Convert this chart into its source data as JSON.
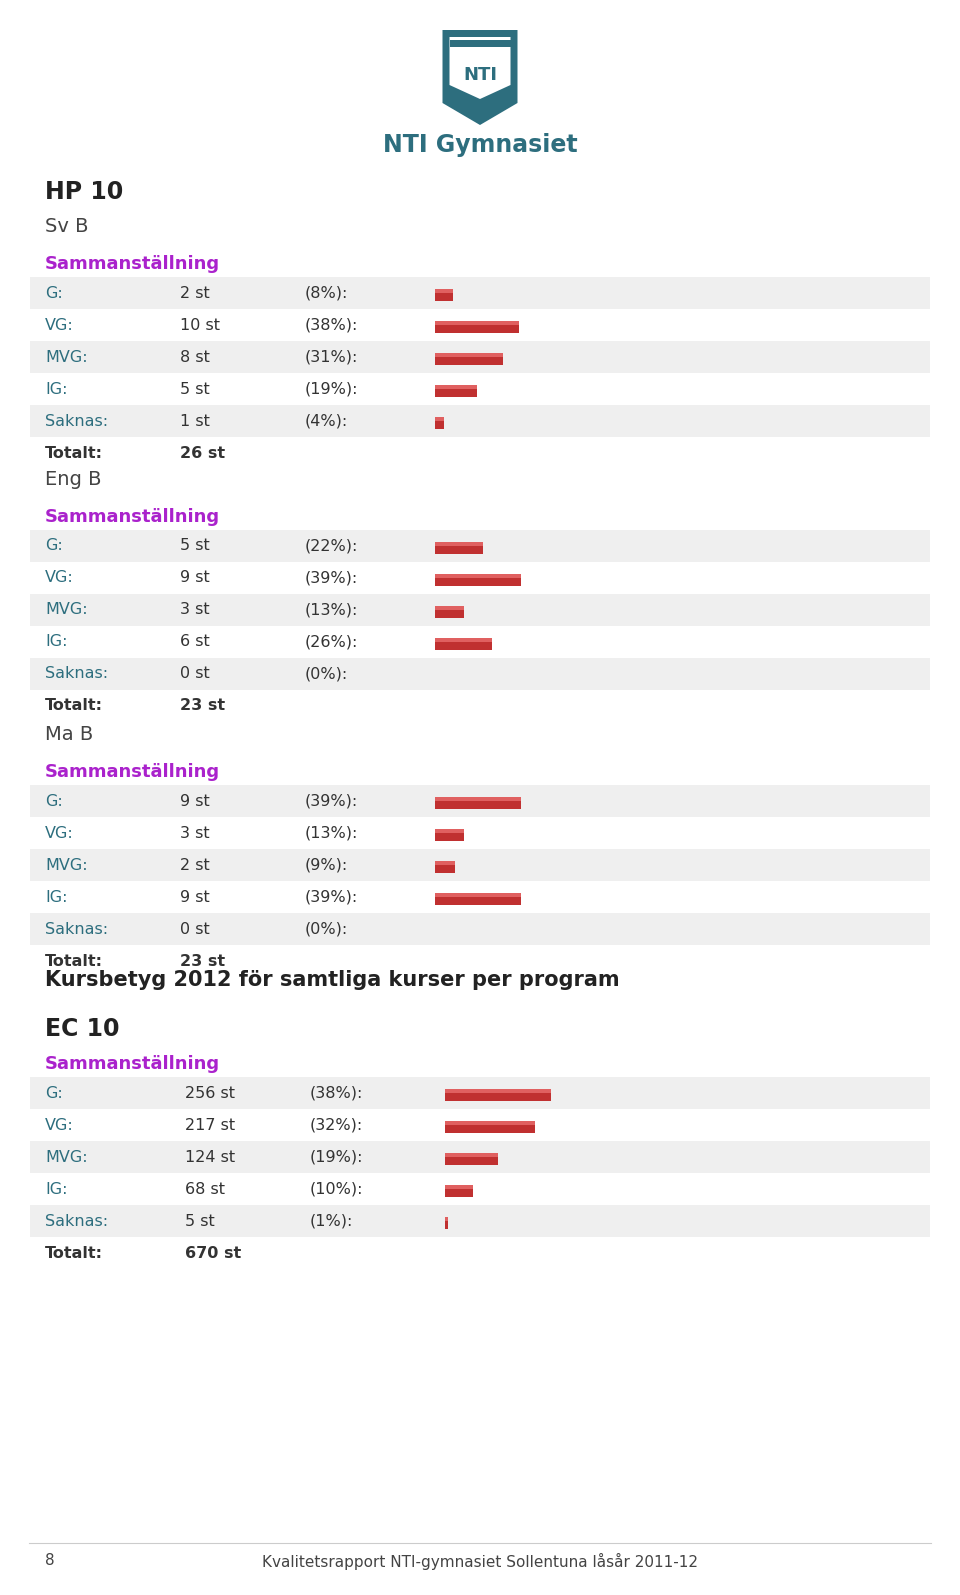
{
  "logo_text": "NTI Gymnasiet",
  "sections": [
    {
      "program": "HP 10",
      "subject": "Sv B",
      "rows": [
        {
          "name": "G:",
          "count": 2,
          "pct_num": 8
        },
        {
          "name": "VG:",
          "count": 10,
          "pct_num": 38
        },
        {
          "name": "MVG:",
          "count": 8,
          "pct_num": 31
        },
        {
          "name": "IG:",
          "count": 5,
          "pct_num": 19
        },
        {
          "name": "Saknas:",
          "count": 1,
          "pct_num": 4
        },
        {
          "name": "Totalt:",
          "count": 26,
          "pct_num": null
        }
      ]
    },
    {
      "program": "Eng B",
      "subject": null,
      "rows": [
        {
          "name": "G:",
          "count": 5,
          "pct_num": 22
        },
        {
          "name": "VG:",
          "count": 9,
          "pct_num": 39
        },
        {
          "name": "MVG:",
          "count": 3,
          "pct_num": 13
        },
        {
          "name": "IG:",
          "count": 6,
          "pct_num": 26
        },
        {
          "name": "Saknas:",
          "count": 0,
          "pct_num": 0
        },
        {
          "name": "Totalt:",
          "count": 23,
          "pct_num": null
        }
      ]
    },
    {
      "program": "Ma B",
      "subject": null,
      "rows": [
        {
          "name": "G:",
          "count": 9,
          "pct_num": 39
        },
        {
          "name": "VG:",
          "count": 3,
          "pct_num": 13
        },
        {
          "name": "MVG:",
          "count": 2,
          "pct_num": 9
        },
        {
          "name": "IG:",
          "count": 9,
          "pct_num": 39
        },
        {
          "name": "Saknas:",
          "count": 0,
          "pct_num": 0
        },
        {
          "name": "Totalt:",
          "count": 23,
          "pct_num": null
        }
      ]
    }
  ],
  "summary_title": "Kursbetyg 2012 för samtliga kurser per program",
  "summary_program": "EC 10",
  "summary_rows": [
    {
      "name": "G:",
      "count": 256,
      "pct_num": 38
    },
    {
      "name": "VG:",
      "count": 217,
      "pct_num": 32
    },
    {
      "name": "MVG:",
      "count": 124,
      "pct_num": 19
    },
    {
      "name": "IG:",
      "count": 68,
      "pct_num": 10
    },
    {
      "name": "Saknas:",
      "count": 5,
      "pct_num": 1
    },
    {
      "name": "Totalt:",
      "count": 670,
      "pct_num": null
    }
  ],
  "bg_color": "#ffffff",
  "table_bg_even": "#efefef",
  "table_bg_odd": "#ffffff",
  "bar_color_light": "#e06060",
  "bar_color_dark": "#c03030",
  "program_color": "#222222",
  "subject_color": "#444444",
  "sammans_color": "#aa22cc",
  "label_color": "#2d6e7e",
  "totalt_color": "#333333",
  "footer_text": "Kvalitetsrapport NTI-gymnasiet Sollentuna låsår 2011-12",
  "footer_page": "8",
  "shield_color": "#2d6e7e",
  "logo_label": "NTI Gymnasiet"
}
